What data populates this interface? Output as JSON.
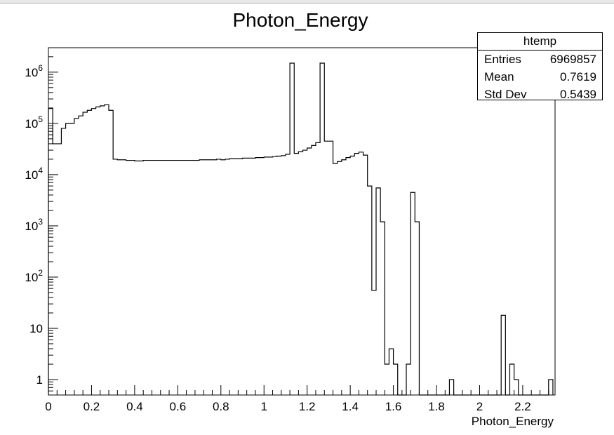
{
  "chart_data": {
    "type": "histogram",
    "title": "Photon_Energy",
    "xlabel": "Photon_Energy",
    "ylabel": "",
    "xlim": [
      0,
      2.35
    ],
    "ylim": [
      0.5,
      3000000
    ],
    "log_y": true,
    "x_ticks": [
      {
        "value": 0,
        "label": "0"
      },
      {
        "value": 0.2,
        "label": "0.2"
      },
      {
        "value": 0.4,
        "label": "0.4"
      },
      {
        "value": 0.6,
        "label": "0.6"
      },
      {
        "value": 0.8,
        "label": "0.8"
      },
      {
        "value": 1.0,
        "label": "1"
      },
      {
        "value": 1.2,
        "label": "1.2"
      },
      {
        "value": 1.4,
        "label": "1.4"
      },
      {
        "value": 1.6,
        "label": "1.6"
      },
      {
        "value": 1.8,
        "label": "1.8"
      },
      {
        "value": 2.0,
        "label": "2"
      },
      {
        "value": 2.2,
        "label": "2.2"
      }
    ],
    "y_ticks": [
      {
        "value": 1,
        "base": "1",
        "exp": ""
      },
      {
        "value": 10,
        "base": "10",
        "exp": ""
      },
      {
        "value": 100,
        "base": "10",
        "exp": "2"
      },
      {
        "value": 1000,
        "base": "10",
        "exp": "3"
      },
      {
        "value": 10000,
        "base": "10",
        "exp": "4"
      },
      {
        "value": 100000,
        "base": "10",
        "exp": "5"
      },
      {
        "value": 1000000,
        "base": "10",
        "exp": "6"
      }
    ],
    "bin_width": 0.02,
    "bins": [
      [
        0.0,
        195000
      ],
      [
        0.02,
        40000
      ],
      [
        0.04,
        40000
      ],
      [
        0.06,
        80000
      ],
      [
        0.08,
        100000
      ],
      [
        0.1,
        100000
      ],
      [
        0.12,
        125000
      ],
      [
        0.14,
        140000
      ],
      [
        0.16,
        165000
      ],
      [
        0.18,
        180000
      ],
      [
        0.2,
        195000
      ],
      [
        0.22,
        210000
      ],
      [
        0.24,
        220000
      ],
      [
        0.26,
        232000
      ],
      [
        0.28,
        180000
      ],
      [
        0.3,
        20000
      ],
      [
        0.32,
        19500
      ],
      [
        0.34,
        19500
      ],
      [
        0.36,
        19000
      ],
      [
        0.38,
        19000
      ],
      [
        0.4,
        18500
      ],
      [
        0.42,
        18500
      ],
      [
        0.44,
        19000
      ],
      [
        0.46,
        19000
      ],
      [
        0.48,
        19000
      ],
      [
        0.5,
        19000
      ],
      [
        0.52,
        19000
      ],
      [
        0.54,
        19000
      ],
      [
        0.56,
        19000
      ],
      [
        0.58,
        19000
      ],
      [
        0.6,
        19000
      ],
      [
        0.62,
        19000
      ],
      [
        0.64,
        19000
      ],
      [
        0.66,
        19000
      ],
      [
        0.68,
        19000
      ],
      [
        0.7,
        19500
      ],
      [
        0.72,
        19500
      ],
      [
        0.74,
        19500
      ],
      [
        0.76,
        19500
      ],
      [
        0.78,
        20000
      ],
      [
        0.8,
        19500
      ],
      [
        0.82,
        20000
      ],
      [
        0.84,
        20500
      ],
      [
        0.86,
        20500
      ],
      [
        0.88,
        20500
      ],
      [
        0.9,
        21000
      ],
      [
        0.92,
        21000
      ],
      [
        0.94,
        21000
      ],
      [
        0.96,
        21500
      ],
      [
        0.98,
        21500
      ],
      [
        1.0,
        22000
      ],
      [
        1.02,
        22000
      ],
      [
        1.04,
        22500
      ],
      [
        1.06,
        23000
      ],
      [
        1.08,
        23500
      ],
      [
        1.1,
        25000
      ],
      [
        1.12,
        1500000
      ],
      [
        1.14,
        26000
      ],
      [
        1.16,
        28000
      ],
      [
        1.18,
        30000
      ],
      [
        1.2,
        33000
      ],
      [
        1.22,
        37000
      ],
      [
        1.24,
        42000
      ],
      [
        1.26,
        1500000
      ],
      [
        1.28,
        45000
      ],
      [
        1.3,
        45000
      ],
      [
        1.32,
        16500
      ],
      [
        1.34,
        18000
      ],
      [
        1.36,
        19500
      ],
      [
        1.38,
        21500
      ],
      [
        1.4,
        23000
      ],
      [
        1.42,
        26000
      ],
      [
        1.44,
        27500
      ],
      [
        1.46,
        24000
      ],
      [
        1.48,
        6000
      ],
      [
        1.5,
        55
      ],
      [
        1.52,
        5500
      ],
      [
        1.54,
        1200
      ],
      [
        1.56,
        2
      ],
      [
        1.58,
        4
      ],
      [
        1.6,
        2
      ],
      [
        1.62,
        0
      ],
      [
        1.64,
        0
      ],
      [
        1.66,
        2
      ],
      [
        1.68,
        4500
      ],
      [
        1.7,
        1200
      ],
      [
        1.72,
        0
      ],
      [
        1.74,
        0
      ],
      [
        1.76,
        0
      ],
      [
        1.78,
        0
      ],
      [
        1.8,
        0
      ],
      [
        1.82,
        0
      ],
      [
        1.84,
        0
      ],
      [
        1.86,
        1
      ],
      [
        1.88,
        0
      ],
      [
        1.9,
        0
      ],
      [
        1.92,
        0
      ],
      [
        1.94,
        0
      ],
      [
        1.96,
        0
      ],
      [
        1.98,
        0
      ],
      [
        2.0,
        0
      ],
      [
        2.02,
        0
      ],
      [
        2.04,
        0
      ],
      [
        2.06,
        0
      ],
      [
        2.08,
        0
      ],
      [
        2.1,
        18
      ],
      [
        2.12,
        0
      ],
      [
        2.14,
        2
      ],
      [
        2.16,
        1
      ],
      [
        2.18,
        0
      ],
      [
        2.2,
        0
      ],
      [
        2.22,
        0
      ],
      [
        2.24,
        0
      ],
      [
        2.26,
        0
      ],
      [
        2.28,
        0
      ],
      [
        2.3,
        0
      ],
      [
        2.32,
        1
      ]
    ],
    "stats_box": {
      "title": "htemp",
      "rows": [
        {
          "label": "Entries",
          "value": "6969857"
        },
        {
          "label": "Mean",
          "value": "0.7619"
        },
        {
          "label": "Std Dev",
          "value": "0.5439"
        }
      ]
    }
  }
}
